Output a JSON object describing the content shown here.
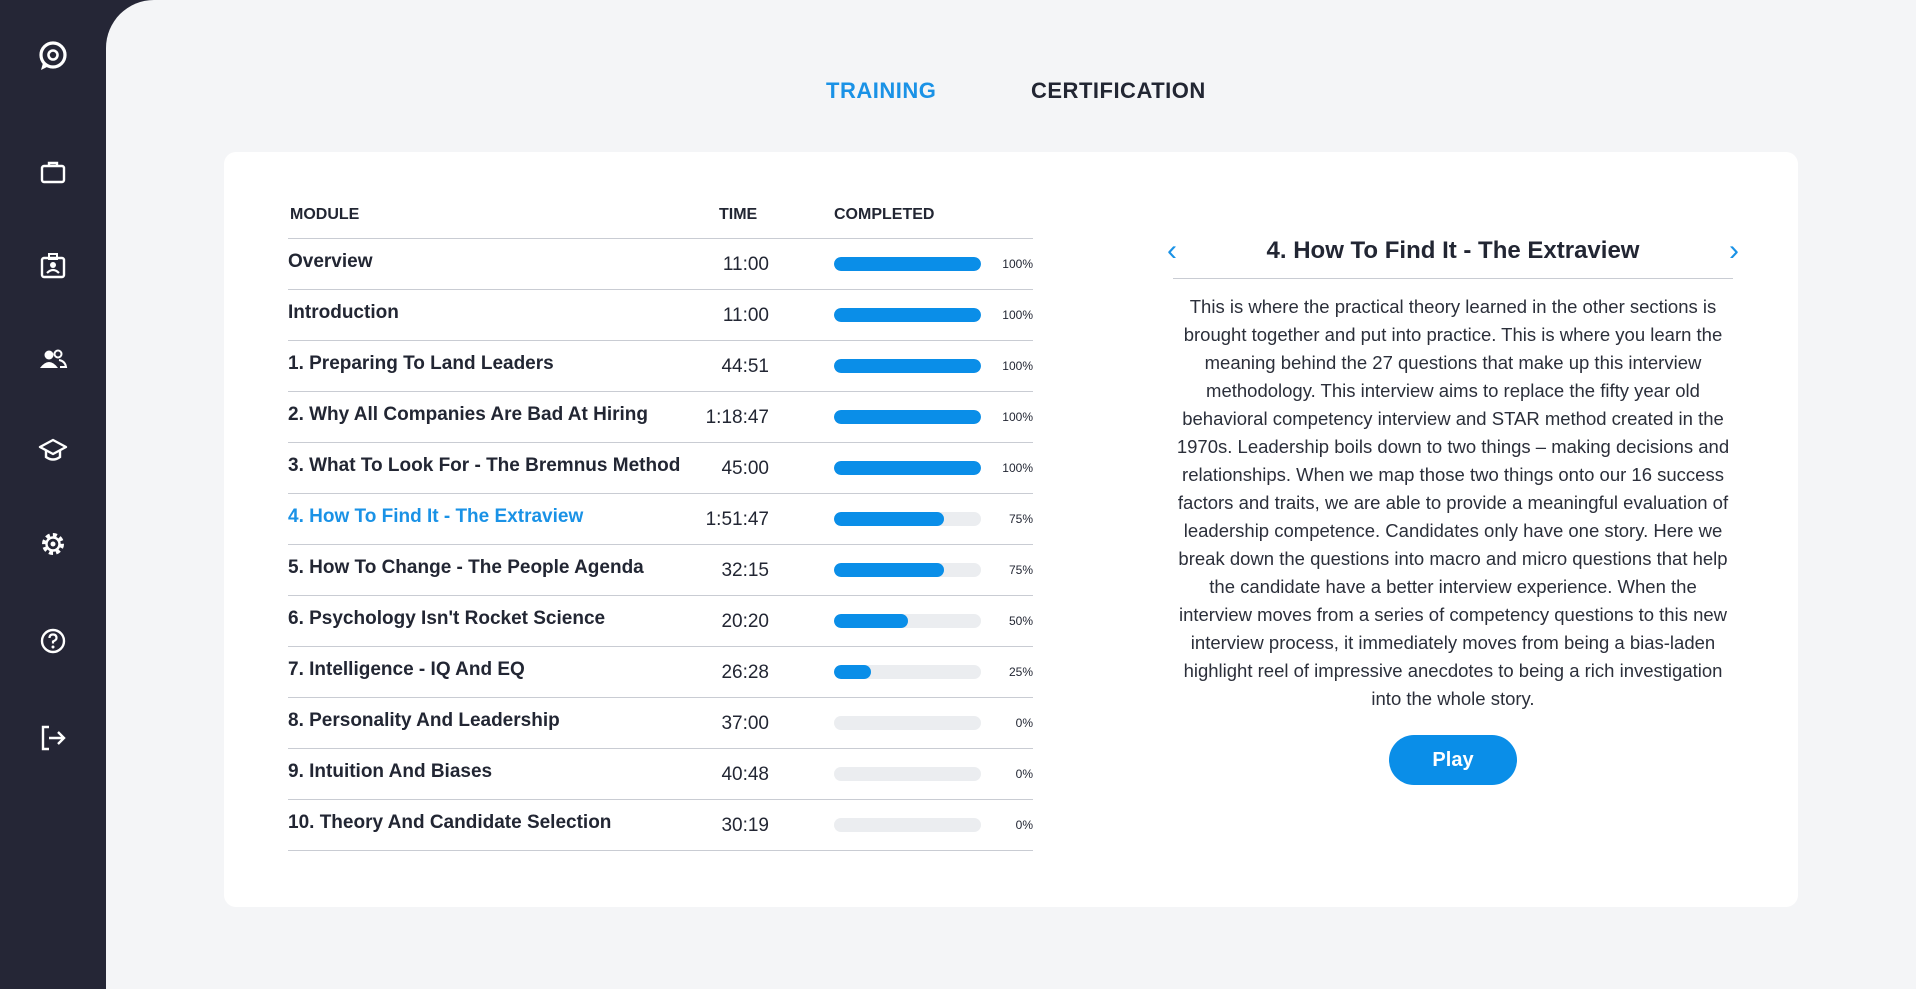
{
  "sidebar": {
    "icons": [
      "chat-logo-icon",
      "briefcase-icon",
      "id-badge-icon",
      "people-icon",
      "graduation-cap-icon",
      "gear-icon",
      "help-icon",
      "logout-icon"
    ]
  },
  "tabs": [
    {
      "label": "TRAINING",
      "active": true
    },
    {
      "label": "CERTIFICATION",
      "active": false
    }
  ],
  "table": {
    "headers": {
      "module": "MODULE",
      "time": "TIME",
      "completed": "COMPLETED"
    },
    "rows": [
      {
        "name": "Overview",
        "time": "11:00",
        "progress": 100,
        "pct_label": "100%"
      },
      {
        "name": "Introduction",
        "time": "11:00",
        "progress": 100,
        "pct_label": "100%"
      },
      {
        "name": "1.  Preparing To Land Leaders",
        "time": "44:51",
        "progress": 100,
        "pct_label": "100%"
      },
      {
        "name": "2.  Why All Companies Are Bad At Hiring",
        "time": "1:18:47",
        "progress": 100,
        "pct_label": "100%"
      },
      {
        "name": "3. What To Look For - The Bremnus Method",
        "time": "45:00",
        "progress": 100,
        "pct_label": "100%"
      },
      {
        "name": "4.  How To Find It - The Extraview",
        "time": "1:51:47",
        "progress": 75,
        "pct_label": "75%",
        "active": true
      },
      {
        "name": "5.  How To Change - The People Agenda",
        "time": "32:15",
        "progress": 75,
        "pct_label": "75%"
      },
      {
        "name": "6. Psychology Isn't Rocket Science",
        "time": "20:20",
        "progress": 50,
        "pct_label": "50%"
      },
      {
        "name": "7.  Intelligence - IQ And EQ",
        "time": "26:28",
        "progress": 25,
        "pct_label": "25%"
      },
      {
        "name": "8. Personality And Leadership",
        "time": "37:00",
        "progress": 0,
        "pct_label": "0%"
      },
      {
        "name": "9.  Intuition And Biases",
        "time": "40:48",
        "progress": 0,
        "pct_label": "0%"
      },
      {
        "name": "10.  Theory And Candidate Selection",
        "time": "30:19",
        "progress": 0,
        "pct_label": "0%"
      }
    ]
  },
  "detail": {
    "prev_glyph": "‹",
    "next_glyph": "›",
    "title": "4.  How To Find It - The Extraview",
    "description": "This is where the practical theory learned in the other sections is brought together and put into practice. This is where you learn the meaning behind the 27 questions that make up this interview methodology. This interview aims to replace the fifty year old behavioral competency interview and STAR method created in the 1970s. Leadership boils down to two things – making decisions and relationships. When we map those two things onto our 16 success factors and traits, we are able to provide a meaningful evaluation of leadership competence. Candidates only have one story. Here we break down the questions into macro and micro questions that help the candidate have a better interview experience. When the interview moves from a series of competency questions to this new interview process, it immediately moves from being a bias-laden highlight reel of impressive anecdotes to being a rich investigation into the whole story.",
    "play_label": "Play"
  },
  "colors": {
    "accent": "#1a92e6",
    "bar_fill": "#0a8ee8",
    "bar_track": "#ebedf0",
    "sidebar": "#252636",
    "background": "#f4f5f7"
  }
}
